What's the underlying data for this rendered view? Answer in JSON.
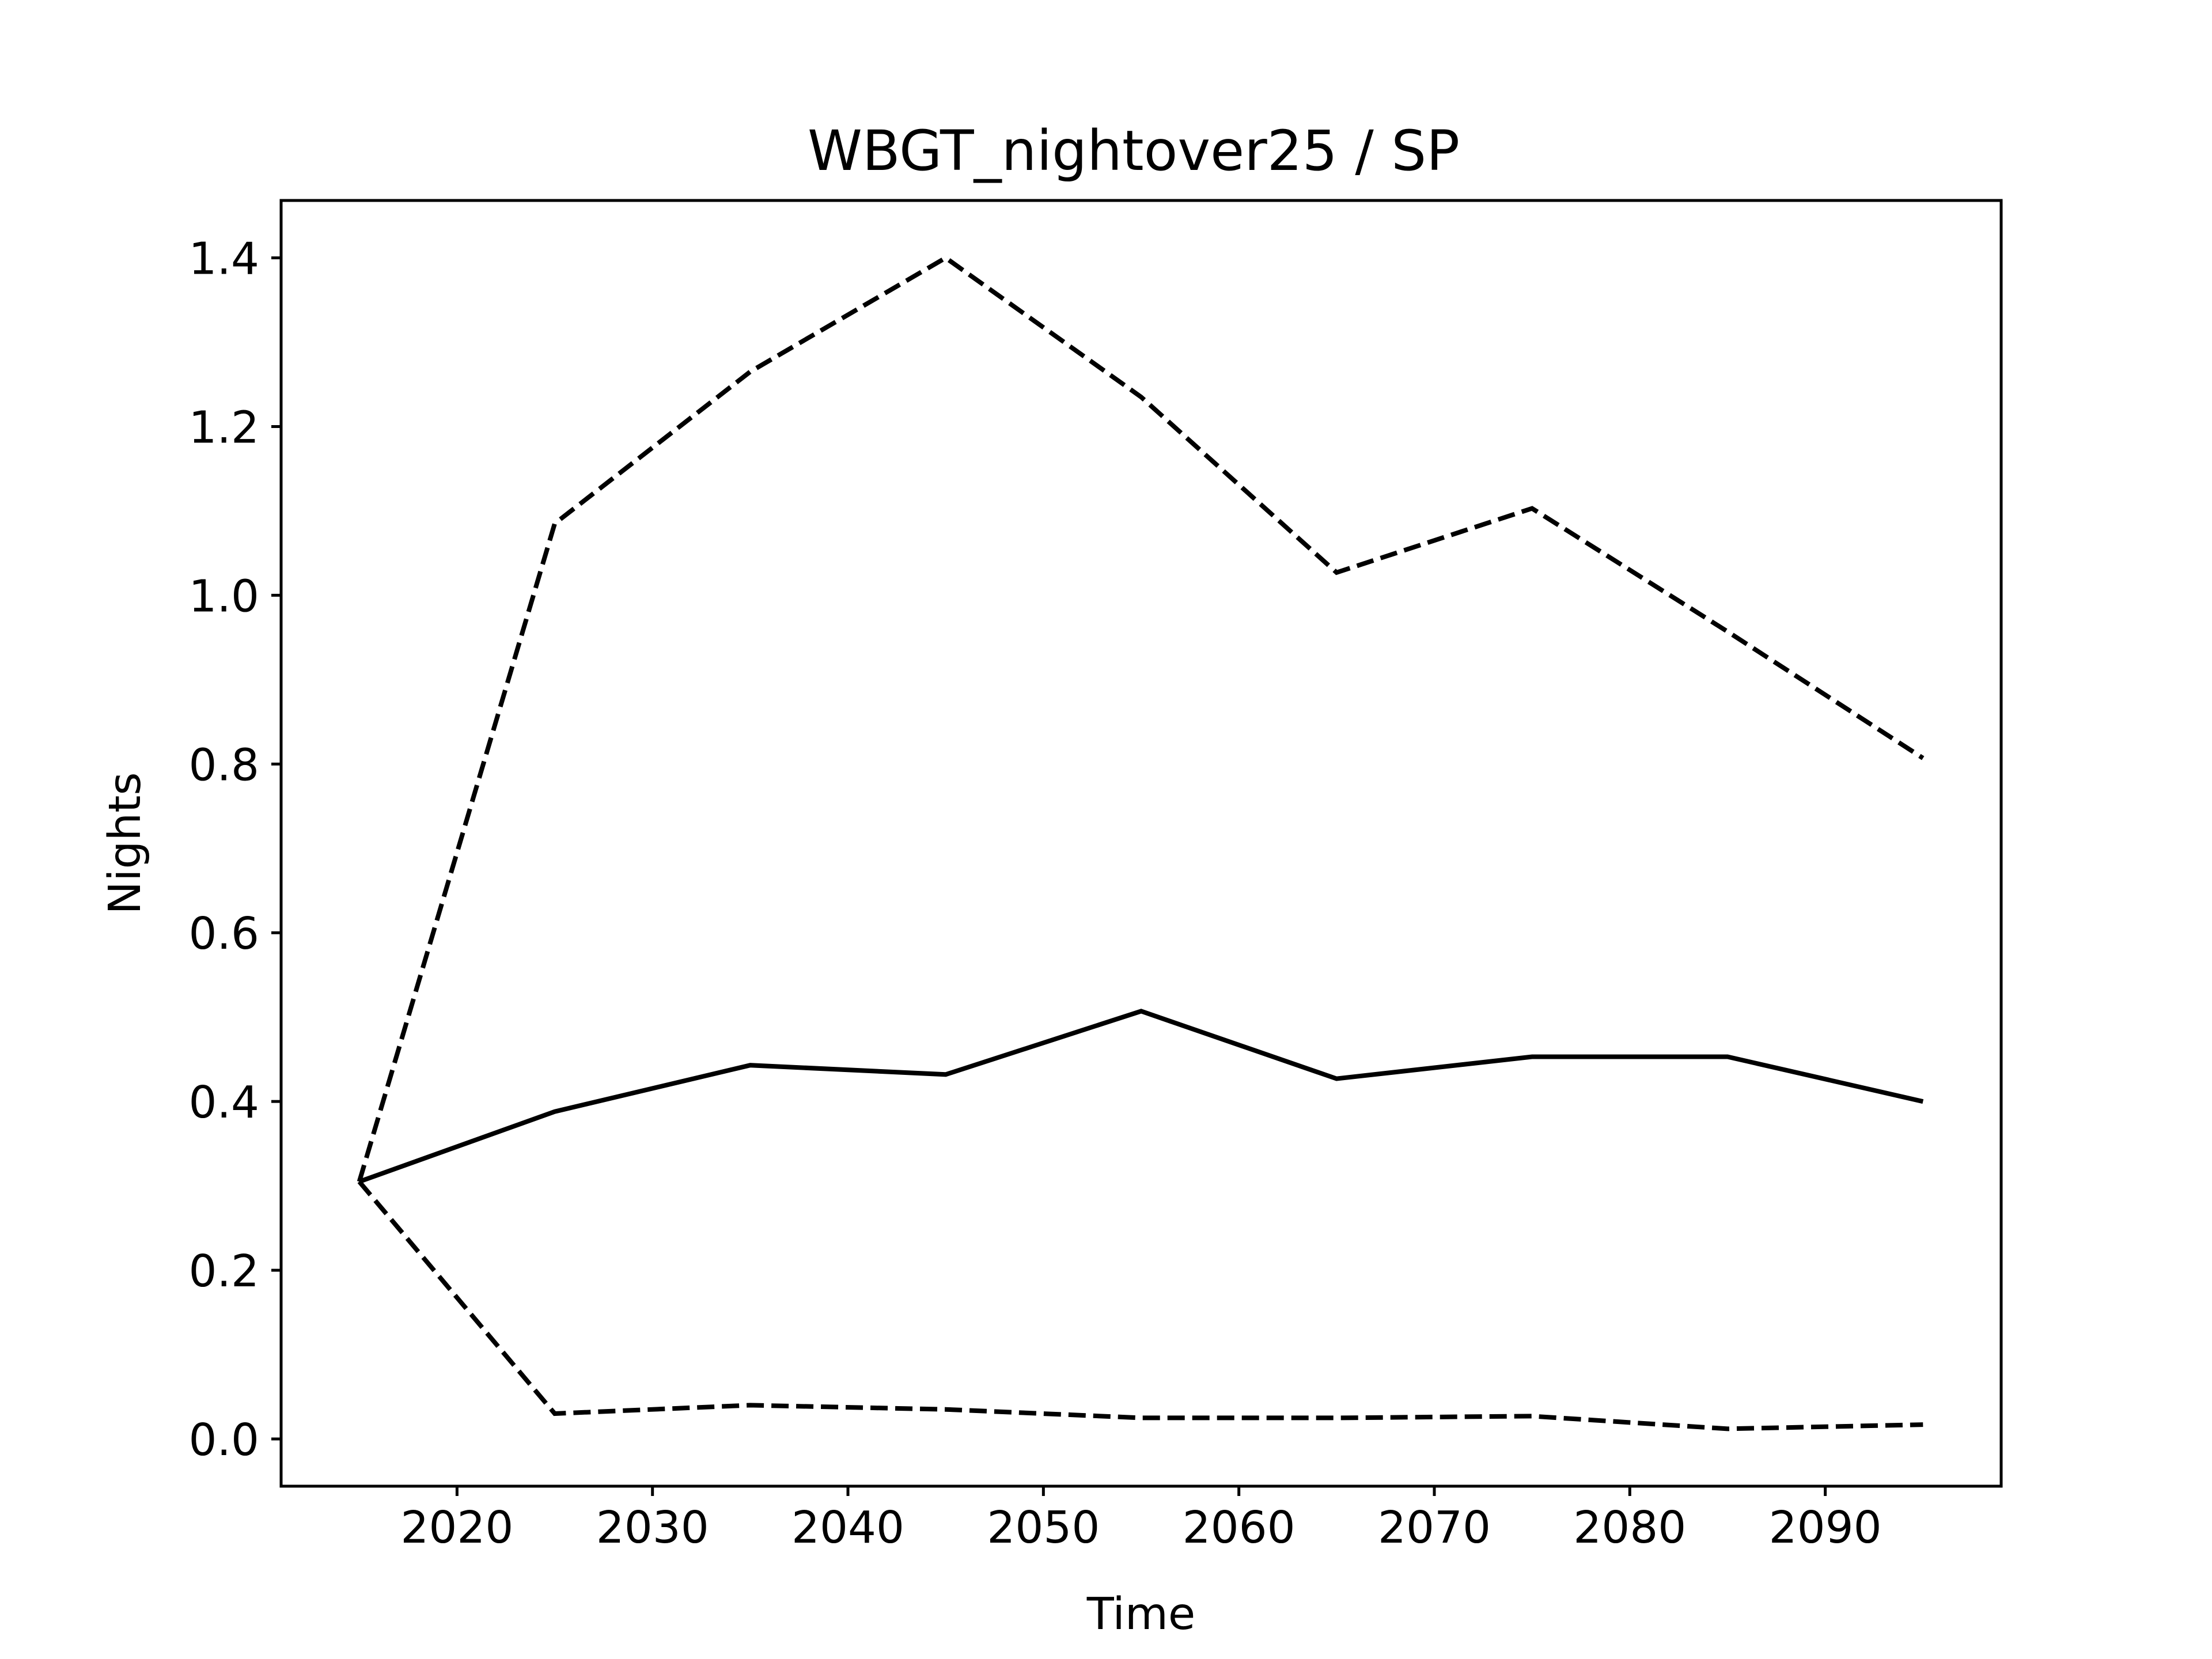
{
  "chart_data": {
    "type": "line",
    "title": "WBGT_nightover25 / SP",
    "xlabel": "Time",
    "ylabel": "Nights",
    "xlim": [
      2011,
      2099
    ],
    "ylim": [
      -0.056,
      1.468
    ],
    "xticks": [
      2020,
      2030,
      2040,
      2050,
      2060,
      2070,
      2080,
      2090
    ],
    "yticks": [
      0.0,
      0.2,
      0.4,
      0.6,
      0.8,
      1.0,
      1.2,
      1.4
    ],
    "ytick_labels": [
      "0.0",
      "0.2",
      "0.4",
      "0.6",
      "0.8",
      "1.0",
      "1.2",
      "1.4"
    ],
    "grid": false,
    "legend": "none",
    "x": [
      2015,
      2025,
      2035,
      2045,
      2055,
      2065,
      2075,
      2085,
      2095
    ],
    "series": [
      {
        "style": "dashed",
        "color": "#000000",
        "values": [
          0.305,
          1.085,
          1.265,
          1.4,
          1.235,
          1.027,
          1.103,
          0.957,
          0.807
        ]
      },
      {
        "style": "solid",
        "color": "#000000",
        "values": [
          0.305,
          0.388,
          0.443,
          0.432,
          0.507,
          0.427,
          0.453,
          0.453,
          0.4
        ]
      },
      {
        "style": "dashed",
        "color": "#000000",
        "values": [
          0.305,
          0.03,
          0.04,
          0.035,
          0.025,
          0.025,
          0.027,
          0.012,
          0.017
        ]
      }
    ]
  }
}
